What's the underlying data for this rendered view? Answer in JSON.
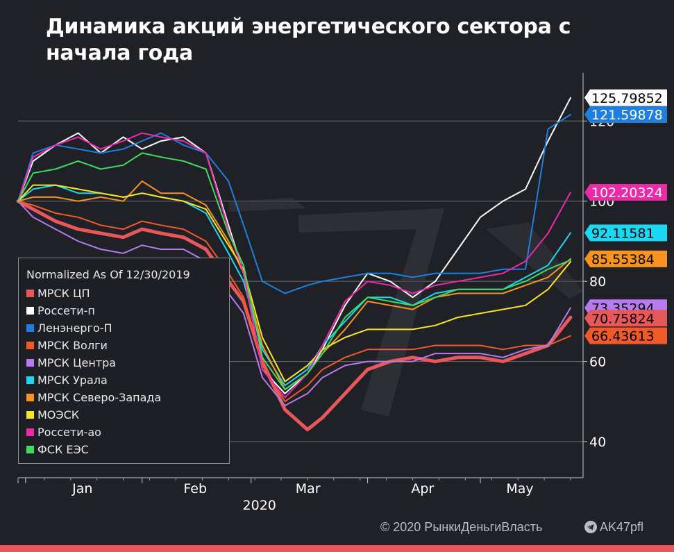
{
  "chart_data": {
    "type": "line",
    "title": "Динамика акций энергетического сектора с начала года",
    "legend_title": "Normalized As Of 12/30/2019",
    "legend_placement": "left-middle",
    "x_tick_labels": [
      "Jan",
      "Feb",
      "Mar",
      "Apr",
      "May"
    ],
    "x_year_label": "2020",
    "y_tick_labels": [
      "40",
      "60",
      "80",
      "100",
      "120"
    ],
    "ylim": [
      31,
      132
    ],
    "grid": true,
    "x": [
      "2019-12-30",
      "2020-01-03",
      "2020-01-09",
      "2020-01-15",
      "2020-01-21",
      "2020-01-27",
      "2020-02-01",
      "2020-02-06",
      "2020-02-12",
      "2020-02-18",
      "2020-02-24",
      "2020-02-28",
      "2020-03-04",
      "2020-03-10",
      "2020-03-16",
      "2020-03-20",
      "2020-03-26",
      "2020-04-01",
      "2020-04-07",
      "2020-04-13",
      "2020-04-19",
      "2020-04-25",
      "2020-05-01",
      "2020-05-07",
      "2020-05-13",
      "2020-05-19",
      "2020-05-25"
    ],
    "series": [
      {
        "name": "МРСК ЦП",
        "color": "#e8585a",
        "values": [
          100,
          98,
          95,
          93,
          92,
          91,
          93,
          92,
          91,
          88,
          80,
          75,
          60,
          48,
          43,
          46,
          52,
          58,
          60,
          61,
          60,
          61,
          61,
          60,
          62,
          64,
          71
        ]
      },
      {
        "name": "Россети-п",
        "color": "#ffffff",
        "values": [
          100,
          110,
          114,
          117,
          112,
          116,
          113,
          115,
          116,
          112,
          94,
          82,
          58,
          52,
          57,
          63,
          74,
          82,
          80,
          76,
          80,
          88,
          96,
          100,
          103,
          115,
          125.8
        ]
      },
      {
        "name": "Ленэнерго-П",
        "color": "#1e7fe0",
        "values": [
          100,
          112,
          114,
          113,
          112,
          113,
          115,
          117,
          114,
          112,
          105,
          94,
          80,
          77,
          79,
          80,
          81,
          82,
          82,
          81,
          82,
          82,
          82,
          83,
          83,
          118,
          121.6
        ]
      },
      {
        "name": "МРСК Волги",
        "color": "#f05a28",
        "values": [
          100,
          99,
          97,
          96,
          94,
          93,
          95,
          94,
          93,
          90,
          82,
          76,
          59,
          50,
          54,
          58,
          61,
          63,
          63,
          63,
          64,
          64,
          64,
          63,
          64,
          64,
          66.4
        ]
      },
      {
        "name": "МРСК Центра",
        "color": "#b57bef",
        "values": [
          100,
          96,
          93,
          90,
          88,
          87,
          89,
          88,
          88,
          85,
          77,
          72,
          56,
          49,
          52,
          56,
          59,
          60,
          60,
          60,
          62,
          62,
          62,
          61,
          63,
          64,
          73.4
        ]
      },
      {
        "name": "МРСК Урала",
        "color": "#19d8f2",
        "values": [
          100,
          103,
          104,
          102,
          102,
          101,
          102,
          101,
          100,
          97,
          87,
          80,
          63,
          54,
          58,
          64,
          70,
          76,
          76,
          74,
          77,
          78,
          78,
          78,
          81,
          84,
          92.1
        ]
      },
      {
        "name": "МРСК Северо-Запада",
        "color": "#f7931e",
        "values": [
          100,
          101,
          101,
          100,
          101,
          100,
          105,
          102,
          102,
          99,
          90,
          82,
          64,
          53,
          57,
          62,
          68,
          75,
          74,
          73,
          76,
          77,
          77,
          77,
          79,
          81,
          85.6
        ]
      },
      {
        "name": "МОЭСК",
        "color": "#f9e61e",
        "values": [
          100,
          104,
          104,
          103,
          102,
          101,
          102,
          101,
          100,
          98,
          89,
          83,
          66,
          55,
          59,
          63,
          66,
          68,
          68,
          68,
          69,
          71,
          72,
          73,
          74,
          78,
          84.9
        ]
      },
      {
        "name": "Россети-ао",
        "color": "#ec2aa9",
        "values": [
          100,
          111,
          114,
          116,
          113,
          115,
          117,
          116,
          115,
          112,
          93,
          82,
          58,
          51,
          57,
          64,
          75,
          80,
          79,
          77,
          79,
          80,
          81,
          82,
          85,
          92,
          102.2
        ]
      },
      {
        "name": "ФСК ЕЭС",
        "color": "#3ddc5b",
        "values": [
          100,
          107,
          108,
          110,
          108,
          109,
          112,
          111,
          110,
          108,
          92,
          84,
          61,
          53,
          57,
          62,
          71,
          76,
          75,
          74,
          76,
          78,
          78,
          78,
          80,
          83,
          85.3
        ]
      }
    ],
    "value_tags": [
      {
        "text": "125.79852",
        "y": 125.8,
        "bg": "#ffffff",
        "fg": "#000000"
      },
      {
        "text": "121.59878",
        "y": 121.6,
        "bg": "#1e7fe0",
        "fg": "#ffffff"
      },
      {
        "text": "102.20324",
        "y": 102.2,
        "bg": "#ec2aa9",
        "fg": "#ffffff"
      },
      {
        "text": "92.11581",
        "y": 92.1,
        "bg": "#19d8f2",
        "fg": "#000000"
      },
      {
        "text": "85.55384",
        "y": 85.6,
        "bg": "#f7931e",
        "fg": "#000000"
      },
      {
        "text": "73.35294",
        "y": 73.4,
        "bg": "#b57bef",
        "fg": "#000000"
      },
      {
        "text": "70.75824",
        "y": 70.8,
        "bg": "#e8585a",
        "fg": "#000000"
      },
      {
        "text": "66.43613",
        "y": 66.4,
        "bg": "#f05a28",
        "fg": "#000000"
      }
    ]
  },
  "footer": {
    "copyright": "© 2020  РынкиДеньгиВласть",
    "channel": "AK47pfl",
    "channel_icon": "telegram-icon",
    "accent_color": "#e8585a"
  }
}
